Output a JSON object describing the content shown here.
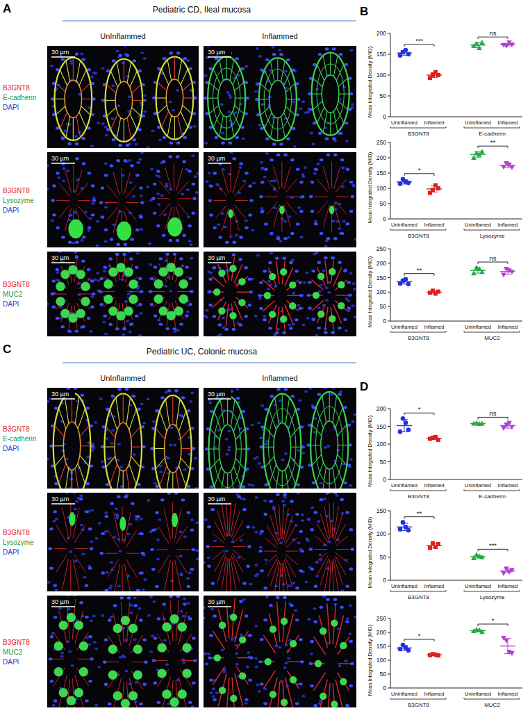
{
  "panels": [
    {
      "letter": "A",
      "title": "Pediatric CD, Ileal mucosa",
      "columns": [
        "UnInflammed",
        "Inflammed"
      ],
      "scale_bar": "30 µm",
      "rows": [
        {
          "stains": [
            {
              "text": "B3GNT8",
              "color": "#e8231f"
            },
            {
              "text": "E-cadherin",
              "color": "#1f9e3c"
            },
            {
              "text": "DAPI",
              "color": "#1f3fd6"
            }
          ]
        },
        {
          "stains": [
            {
              "text": "B3GNT8",
              "color": "#e8231f"
            },
            {
              "text": "Lysozyme",
              "color": "#1f9e3c"
            },
            {
              "text": "DAPI",
              "color": "#1f3fd6"
            }
          ]
        },
        {
          "stains": [
            {
              "text": "B3GNT8",
              "color": "#e8231f"
            },
            {
              "text": "MUC2",
              "color": "#1f9e3c"
            },
            {
              "text": "DAPI",
              "color": "#1f3fd6"
            }
          ]
        }
      ]
    },
    {
      "letter": "C",
      "title": "Pediatric UC, Colonic mucosa",
      "columns": [
        "UnInflammed",
        "Inflammed"
      ],
      "scale_bar": "30 µm",
      "rows": [
        {
          "stains": [
            {
              "text": "B3GNT8",
              "color": "#e8231f"
            },
            {
              "text": "E-cadherin",
              "color": "#1f9e3c"
            },
            {
              "text": "DAPI",
              "color": "#1f3fd6"
            }
          ]
        },
        {
          "stains": [
            {
              "text": "B3GNT8",
              "color": "#e8231f"
            },
            {
              "text": "Lysozyme",
              "color": "#1f9e3c"
            },
            {
              "text": "DAPI",
              "color": "#1f3fd6"
            }
          ]
        },
        {
          "stains": [
            {
              "text": "B3GNT8",
              "color": "#e8231f"
            },
            {
              "text": "MUC2",
              "color": "#1f9e3c"
            },
            {
              "text": "DAPI",
              "color": "#1f3fd6"
            }
          ]
        }
      ]
    }
  ],
  "chart_data": [
    {
      "type": "scatter",
      "panel_letter": "B",
      "ylabel": "Mean Integrated Density (MID)",
      "ylim": [
        0,
        200
      ],
      "yticks": [
        0,
        50,
        100,
        150,
        200
      ],
      "groups": [
        {
          "name": "B3GNT8",
          "significance": "***",
          "series": [
            {
              "name": "Uninflamed",
              "color": "#2233dd",
              "marker": "circle",
              "values": [
                147,
                155,
                160,
                150
              ],
              "mean": 153,
              "error": 6
            },
            {
              "name": "Inflamed",
              "color": "#e02020",
              "marker": "square",
              "values": [
                93,
                100,
                107,
                100
              ],
              "mean": 100,
              "error": 6
            }
          ]
        },
        {
          "name": "E-cadherin",
          "significance": "ns",
          "series": [
            {
              "name": "Uninflamed",
              "color": "#22aa44",
              "marker": "triangle",
              "values": [
                170,
                175,
                165,
                178
              ],
              "mean": 172,
              "error": 6
            },
            {
              "name": "Inflamed",
              "color": "#b040d0",
              "marker": "triangle-down",
              "values": [
                172,
                170,
                178,
                173
              ],
              "mean": 173,
              "error": 3
            }
          ]
        }
      ]
    },
    {
      "type": "scatter",
      "ylabel": "Mean Integrated Density (MID)",
      "ylim": [
        0,
        250
      ],
      "yticks": [
        0,
        50,
        100,
        150,
        200,
        250
      ],
      "groups": [
        {
          "name": "B3GNT8",
          "significance": "*",
          "series": [
            {
              "name": "Uninflamed",
              "color": "#2233dd",
              "marker": "circle",
              "values": [
                115,
                130,
                122,
                118
              ],
              "mean": 121,
              "error": 7
            },
            {
              "name": "Inflamed",
              "color": "#e02020",
              "marker": "square",
              "values": [
                85,
                95,
                110,
                100
              ],
              "mean": 98,
              "error": 10
            }
          ]
        },
        {
          "name": "Lysozyme",
          "significance": "**",
          "series": [
            {
              "name": "Uninflamed",
              "color": "#22aa44",
              "marker": "triangle",
              "values": [
                200,
                215,
                210,
                220
              ],
              "mean": 211,
              "error": 9
            },
            {
              "name": "Inflamed",
              "color": "#b040d0",
              "marker": "triangle-down",
              "values": [
                170,
                182,
                178,
                168
              ],
              "mean": 175,
              "error": 7
            }
          ]
        }
      ]
    },
    {
      "type": "scatter",
      "ylabel": "Mean Integrated Density (MID)",
      "ylim": [
        0,
        250
      ],
      "yticks": [
        0,
        50,
        100,
        150,
        200,
        250
      ],
      "groups": [
        {
          "name": "B3GNT8",
          "significance": "**",
          "series": [
            {
              "name": "Uninflamed",
              "color": "#2233dd",
              "marker": "circle",
              "values": [
                130,
                140,
                145,
                128
              ],
              "mean": 136,
              "error": 8
            },
            {
              "name": "Inflamed",
              "color": "#e02020",
              "marker": "square",
              "values": [
                98,
                105,
                95,
                102
              ],
              "mean": 100,
              "error": 4
            }
          ]
        },
        {
          "name": "MUC2",
          "significance": "ns",
          "series": [
            {
              "name": "Uninflamed",
              "color": "#22aa44",
              "marker": "triangle",
              "values": [
                165,
                185,
                180,
                170
              ],
              "mean": 175,
              "error": 9
            },
            {
              "name": "Inflamed",
              "color": "#b040d0",
              "marker": "triangle-down",
              "values": [
                160,
                180,
                175,
                170
              ],
              "mean": 171,
              "error": 9
            }
          ]
        }
      ]
    },
    {
      "type": "scatter",
      "panel_letter": "D",
      "ylabel": "Mean Integrated Density (MID)",
      "ylim": [
        0,
        200
      ],
      "yticks": [
        0,
        50,
        100,
        150,
        200
      ],
      "groups": [
        {
          "name": "B3GNT8",
          "significance": "*",
          "series": [
            {
              "name": "Uninflamed",
              "color": "#2233dd",
              "marker": "circle",
              "values": [
                135,
                172,
                160,
                140
              ],
              "mean": 152,
              "error": 17
            },
            {
              "name": "Inflamed",
              "color": "#e02020",
              "marker": "square",
              "values": [
                115,
                118,
                120,
                112
              ],
              "mean": 116,
              "error": 3
            }
          ]
        },
        {
          "name": "E-cadherin",
          "significance": "ns",
          "series": [
            {
              "name": "Uninflamed",
              "color": "#22aa44",
              "marker": "triangle",
              "values": [
                158,
                160,
                157,
                158
              ],
              "mean": 158,
              "error": 1
            },
            {
              "name": "Inflamed",
              "color": "#b040d0",
              "marker": "triangle-down",
              "values": [
                145,
                155,
                160,
                148
              ],
              "mean": 152,
              "error": 7
            }
          ]
        }
      ]
    },
    {
      "type": "scatter",
      "ylabel": "Mean Integrated Density (MID)",
      "ylim": [
        0,
        150
      ],
      "yticks": [
        0,
        50,
        100,
        150
      ],
      "groups": [
        {
          "name": "B3GNT8",
          "significance": "**",
          "series": [
            {
              "name": "Uninflamed",
              "color": "#2233dd",
              "marker": "circle",
              "values": [
                110,
                125,
                115,
                108
              ],
              "mean": 115,
              "error": 8
            },
            {
              "name": "Inflamed",
              "color": "#e02020",
              "marker": "square",
              "values": [
                70,
                80,
                72,
                78
              ],
              "mean": 75,
              "error": 5
            }
          ]
        },
        {
          "name": "Lysozyme",
          "significance": "***",
          "series": [
            {
              "name": "Uninflamed",
              "color": "#22aa44",
              "marker": "triangle",
              "values": [
                48,
                55,
                52,
                50
              ],
              "mean": 51,
              "error": 3
            },
            {
              "name": "Inflamed",
              "color": "#b040d0",
              "marker": "triangle-down",
              "values": [
                15,
                25,
                18,
                22
              ],
              "mean": 20,
              "error": 4
            }
          ]
        }
      ]
    },
    {
      "type": "scatter",
      "ylabel": "Mean Integrated Density (MID)",
      "ylim": [
        0,
        250
      ],
      "yticks": [
        0,
        50,
        100,
        150,
        200,
        250
      ],
      "groups": [
        {
          "name": "B3GNT8",
          "significance": "*",
          "series": [
            {
              "name": "Uninflamed",
              "color": "#2233dd",
              "marker": "circle",
              "values": [
                140,
                155,
                145,
                135
              ],
              "mean": 144,
              "error": 9
            },
            {
              "name": "Inflamed",
              "color": "#e02020",
              "marker": "square",
              "values": [
                118,
                122,
                120,
                117
              ],
              "mean": 119,
              "error": 2
            }
          ]
        },
        {
          "name": "MUC2",
          "significance": "*",
          "series": [
            {
              "name": "Uninflamed",
              "color": "#22aa44",
              "marker": "triangle",
              "values": [
                205,
                210,
                208,
                202
              ],
              "mean": 206,
              "error": 4
            },
            {
              "name": "Inflamed",
              "color": "#b040d0",
              "marker": "triangle-down",
              "values": [
                180,
                170,
                130,
                125
              ],
              "mean": 151,
              "error": 27
            }
          ]
        }
      ]
    }
  ]
}
